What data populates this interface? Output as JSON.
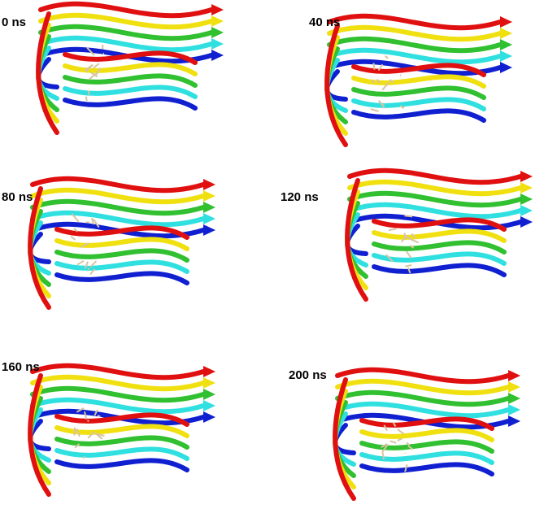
{
  "panels": [
    {
      "label": "0 ns"
    },
    {
      "label": "40 ns"
    },
    {
      "label": "80 ns"
    },
    {
      "label": "120 ns"
    },
    {
      "label": "160 ns"
    },
    {
      "label": "200 ns"
    }
  ]
}
